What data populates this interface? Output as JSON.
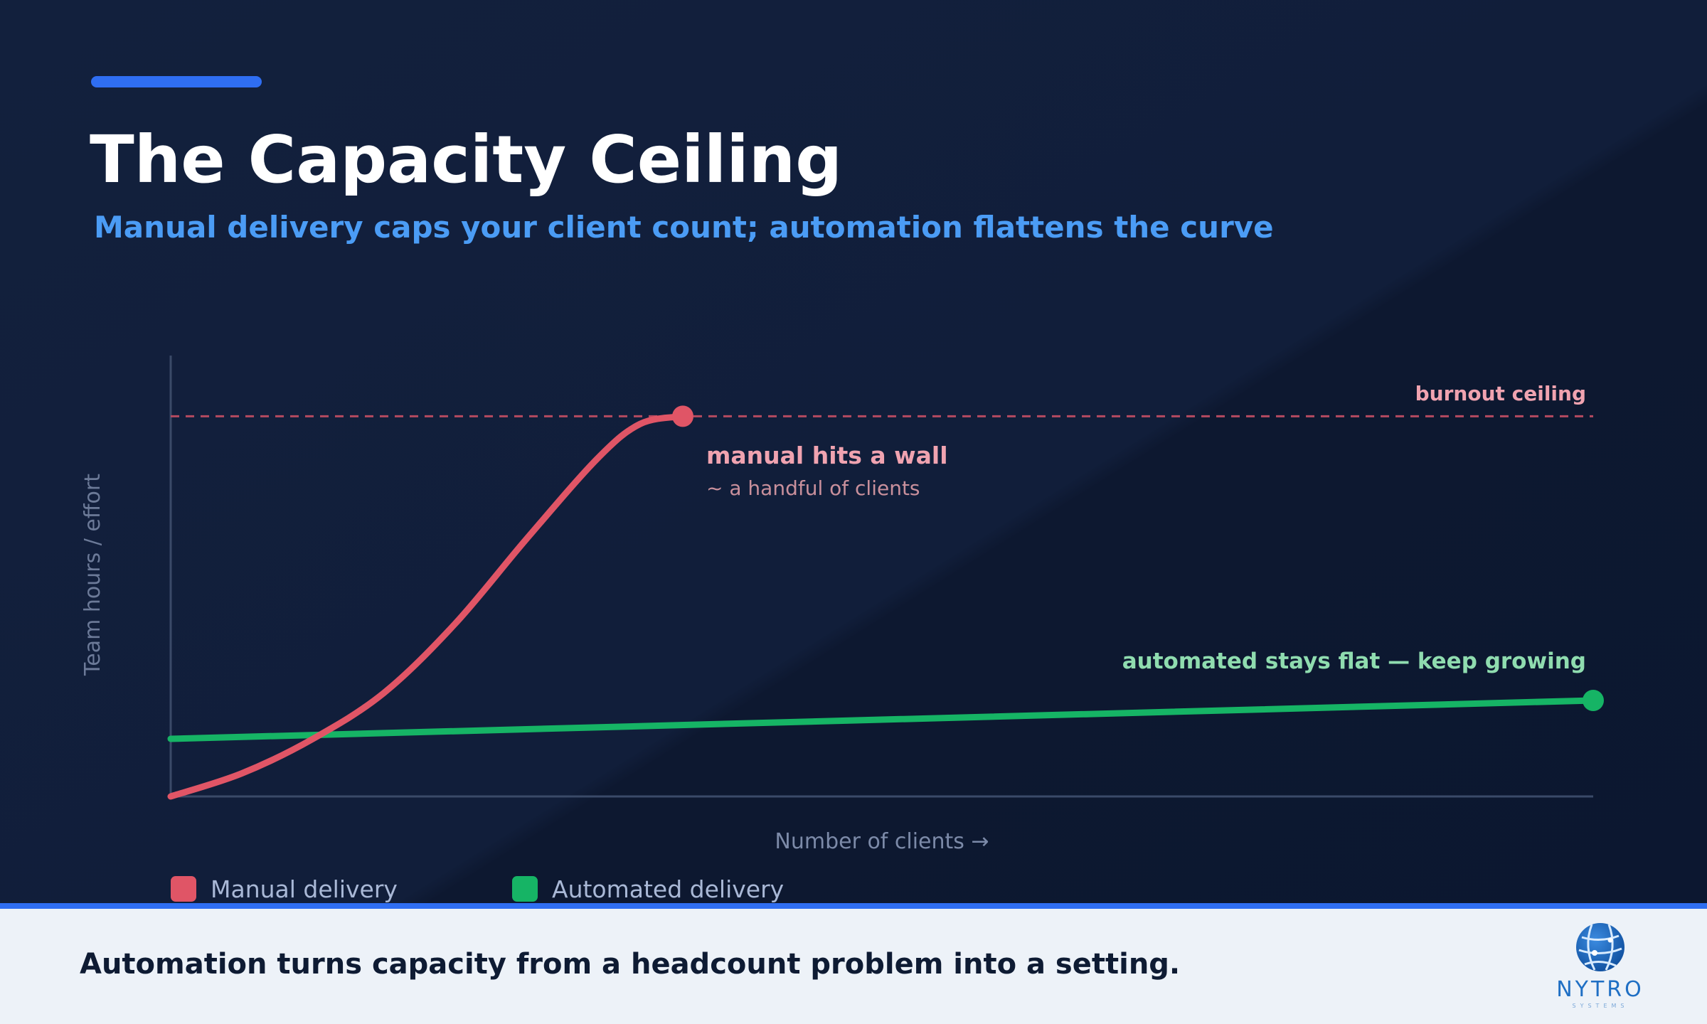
{
  "slide": {
    "title": "The Capacity Ceiling",
    "subtitle": "Manual delivery caps your client count; automation flattens the curve",
    "footer_text": "Automation turns capacity from a headcount problem into a setting.",
    "colors": {
      "accent": "#2f6ef2",
      "subtitle": "#4b9cf5",
      "manual": "#e05566",
      "automated": "#16b465",
      "ceiling": "#b54a60",
      "footer_bg": "#edf2f8"
    },
    "logo": {
      "icon": "globe-network-icon",
      "wordmark": "NYTRO",
      "tagline": "SYSTEMS"
    }
  },
  "chart_data": {
    "type": "line",
    "xlabel": "Number of clients →",
    "ylabel": "Team hours / effort",
    "x_ticks_shown": false,
    "y_ticks_shown": false,
    "grid": false,
    "xlim": [
      0,
      100
    ],
    "ylim": [
      0,
      100
    ],
    "series": [
      {
        "name": "Manual delivery",
        "color": "#e05566",
        "x": [
          0,
          5,
          10,
          15,
          20,
          25,
          30,
          33,
          36
        ],
        "y": [
          0,
          6,
          15,
          27,
          45,
          67,
          88,
          97,
          99
        ],
        "end_marker": true
      },
      {
        "name": "Automated delivery",
        "color": "#16b465",
        "x": [
          0,
          100
        ],
        "y": [
          15,
          25
        ],
        "end_marker": true
      }
    ],
    "reference_lines": [
      {
        "label": "burnout ceiling",
        "y": 99,
        "style": "dashed",
        "color": "#b54a60"
      }
    ],
    "annotations": [
      {
        "text": "manual hits a wall",
        "detail": "~ a handful of clients",
        "x": 36,
        "y": 99
      },
      {
        "text": "automated stays flat — keep growing",
        "x": 100,
        "y": 25
      }
    ],
    "legend": {
      "position": "bottom-left",
      "entries": [
        "Manual delivery",
        "Automated delivery"
      ]
    }
  }
}
